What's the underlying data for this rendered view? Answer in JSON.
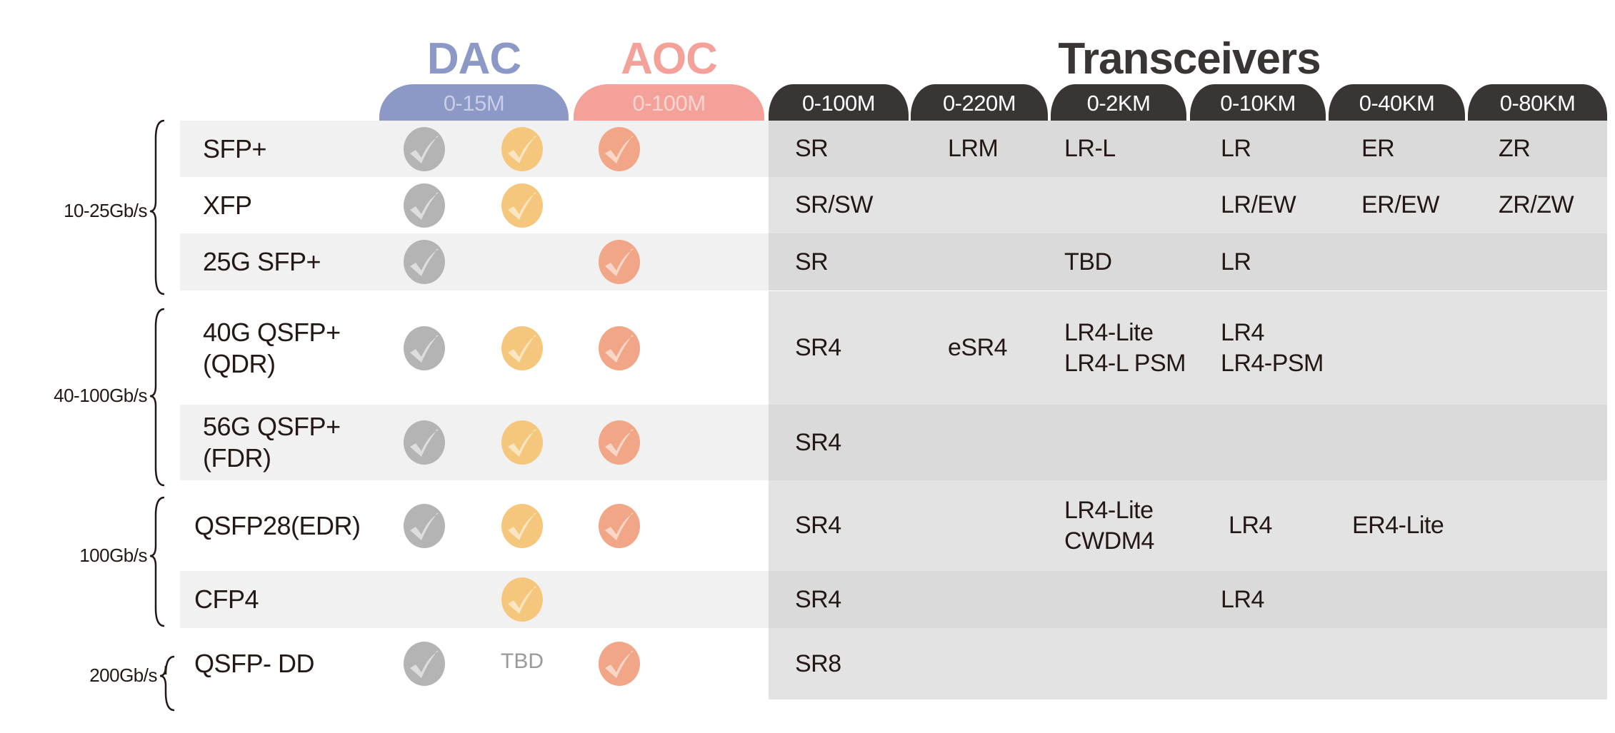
{
  "header": {
    "dac": {
      "title": "DAC",
      "range": "0-15M",
      "color": "#8c99c6"
    },
    "aoc": {
      "title": "AOC",
      "range": "0-100M",
      "color": "#f4a19a"
    },
    "transceivers": {
      "title": "Transceivers",
      "ranges": [
        "0-100M",
        "0-220M",
        "0-2KM",
        "0-10KM",
        "0-40KM",
        "0-80KM"
      ],
      "color": "#3a3535"
    }
  },
  "icon_colors": {
    "dac_a": "#b4b4b4",
    "dac_b": "#f5c77d",
    "aoc": "#f0a687"
  },
  "groups": [
    {
      "label": "10-25Gb/s"
    },
    {
      "label": "40-100Gb/s"
    },
    {
      "label": "100Gb/s"
    },
    {
      "label": "200Gb/s"
    }
  ],
  "rows": [
    {
      "module": "SFP+",
      "dac": [
        true,
        true
      ],
      "aoc": true,
      "transceivers": [
        "SR",
        "LRM",
        "LR-L",
        "LR",
        "ER",
        "ZR"
      ]
    },
    {
      "module": "XFP",
      "dac": [
        true,
        true
      ],
      "aoc": false,
      "transceivers": [
        "SR/SW",
        "",
        "",
        "LR/EW",
        "ER/EW",
        "ZR/ZW"
      ]
    },
    {
      "module": "25G SFP+",
      "dac": [
        true,
        false
      ],
      "aoc": true,
      "transceivers": [
        "SR",
        "",
        "TBD",
        "LR",
        "",
        ""
      ]
    },
    {
      "module": "40G QSFP+\n(QDR)",
      "dac": [
        true,
        true
      ],
      "aoc": true,
      "transceivers": [
        "SR4",
        "eSR4",
        "LR4-Lite\nLR4-L PSM",
        "LR4\nLR4-PSM",
        "",
        ""
      ]
    },
    {
      "module": "56G QSFP+\n(FDR)",
      "dac": [
        true,
        true
      ],
      "aoc": true,
      "transceivers": [
        "SR4",
        "",
        "",
        "",
        "",
        ""
      ]
    },
    {
      "module": "QSFP28(EDR)",
      "dac": [
        true,
        true
      ],
      "aoc": true,
      "transceivers": [
        "SR4",
        "",
        "LR4-Lite\nCWDM4",
        "LR4",
        "ER4-Lite",
        ""
      ]
    },
    {
      "module": "CFP4",
      "dac": [
        false,
        true
      ],
      "aoc": false,
      "transceivers": [
        "SR4",
        "",
        "",
        "LR4",
        "",
        ""
      ]
    },
    {
      "module": "QSFP- DD",
      "dac": [
        true,
        "TBD"
      ],
      "aoc": true,
      "transceivers": [
        "SR8",
        "",
        "",
        "",
        "",
        ""
      ]
    }
  ]
}
